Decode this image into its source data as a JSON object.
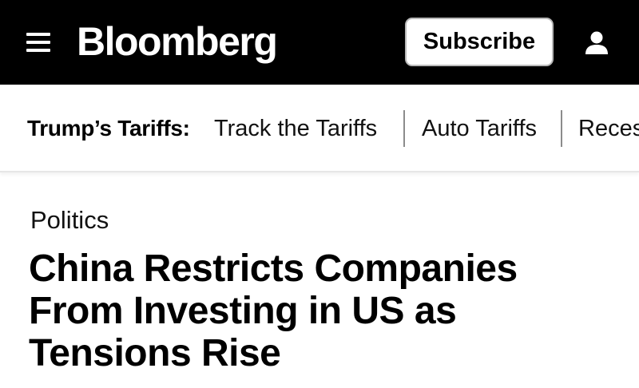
{
  "header": {
    "logo_text": "Bloomberg",
    "subscribe_label": "Subscribe",
    "background_color": "#000000",
    "menu_icon": "hamburger-menu-icon",
    "account_icon": "user-account-icon"
  },
  "subnav": {
    "label": "Trump’s Tariffs:",
    "links": [
      {
        "label": "Track the Tariffs"
      },
      {
        "label": "Auto Tariffs"
      },
      {
        "label": "Recession"
      }
    ]
  },
  "article": {
    "section": "Politics",
    "headline": "China Restricts Companies From Investing in US as Tensions Rise"
  }
}
